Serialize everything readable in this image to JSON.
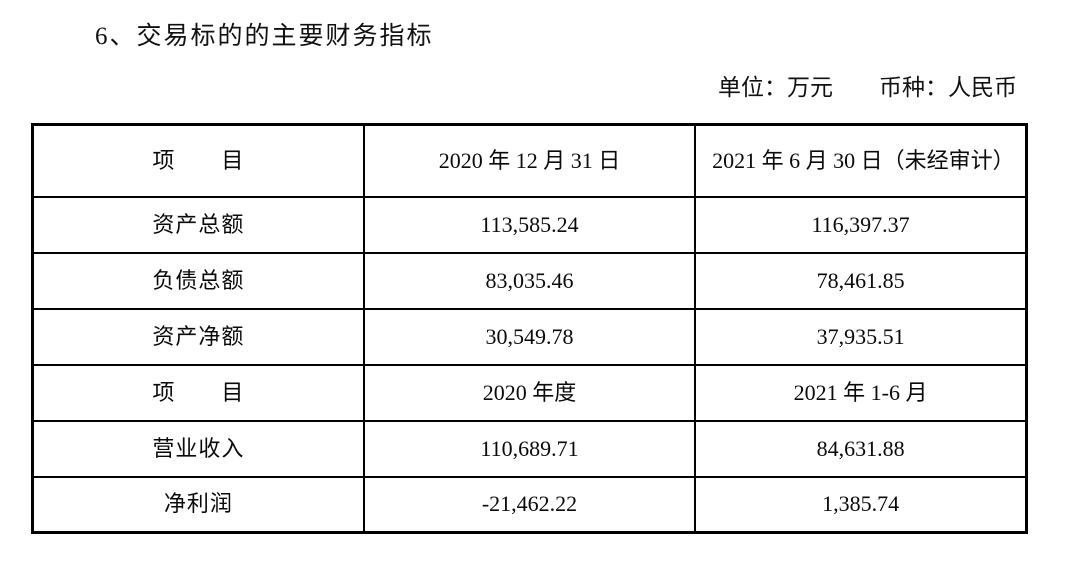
{
  "document": {
    "section_title": "6、交易标的的主要财务指标",
    "unit_note": {
      "unit": "单位：万元",
      "currency": "币种：人民币"
    }
  },
  "table": {
    "columns": [
      "项　　目",
      "2020 年 12 月 31 日",
      "2021 年 6 月 30 日（未经审计）"
    ],
    "rows": [
      [
        "资产总额",
        "113,585.24",
        "116,397.37"
      ],
      [
        "负债总额",
        "83,035.46",
        "78,461.85"
      ],
      [
        "资产净额",
        "30,549.78",
        "37,935.51"
      ],
      [
        "项　　目",
        "2020 年度",
        "2021 年 1-6 月"
      ],
      [
        "营业收入",
        "110,689.71",
        "84,631.88"
      ],
      [
        "净利润",
        "-21,462.22",
        "1,385.74"
      ]
    ]
  }
}
